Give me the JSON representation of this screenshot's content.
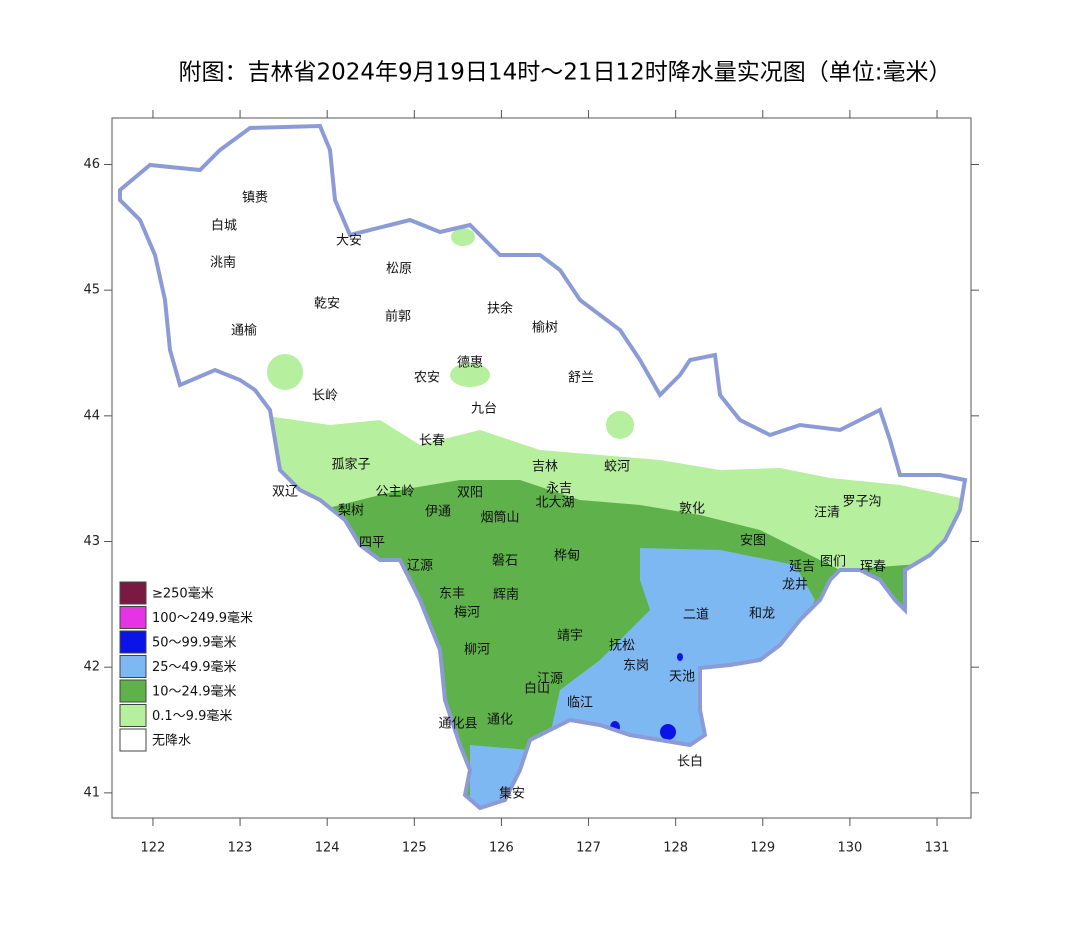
{
  "title": "附图：吉林省2024年9月19日14时～21日12时降水量实况图（单位:毫米）",
  "map": {
    "xlim": [
      121.53,
      131.39
    ],
    "ylim": [
      40.8,
      46.37
    ],
    "xticks": [
      122,
      123,
      124,
      125,
      126,
      127,
      128,
      129,
      130,
      131
    ],
    "yticks": [
      41,
      42,
      43,
      44,
      45,
      46
    ],
    "legend": [
      {
        "label": "≥250毫米",
        "color": "#7a1a40"
      },
      {
        "label": "100～249.9毫米",
        "color": "#e633e6"
      },
      {
        "label": "50～99.9毫米",
        "color": "#0a14e6"
      },
      {
        "label": "25～49.9毫米",
        "color": "#7db8f2"
      },
      {
        "label": "10～24.9毫米",
        "color": "#5fb24b"
      },
      {
        "label": "0.1～9.9毫米",
        "color": "#b6ef9e"
      },
      {
        "label": "无降水",
        "color": "#ffffff"
      }
    ],
    "places": [
      "镇赉",
      "白城",
      "洮南",
      "大安",
      "松原",
      "乾安",
      "前郭",
      "扶余",
      "榆树",
      "通榆",
      "德惠",
      "农安",
      "舒兰",
      "长岭",
      "九台",
      "长春",
      "吉林",
      "蛟河",
      "孤家子",
      "永吉",
      "双辽",
      "公主岭",
      "双阳",
      "北大湖",
      "敦化",
      "汪清",
      "罗子沟",
      "梨树",
      "伊通",
      "烟筒山",
      "安图",
      "四平",
      "磐石",
      "桦甸",
      "图们",
      "延吉",
      "珲春",
      "龙井",
      "辽源",
      "东丰",
      "辉南",
      "梅河",
      "二道",
      "和龙",
      "靖宇",
      "抚松",
      "柳河",
      "东岗",
      "天池",
      "江源",
      "白山",
      "临江",
      "通化县",
      "通化",
      "长白",
      "集安"
    ]
  }
}
